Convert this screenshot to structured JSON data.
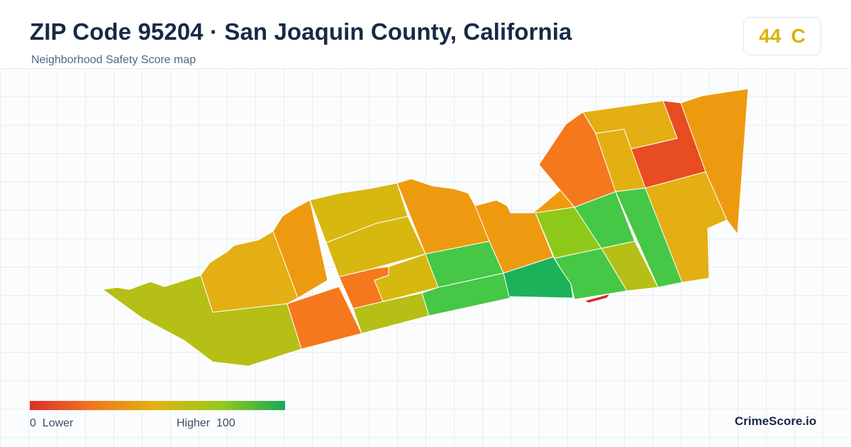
{
  "title": "ZIP Code 95204 · San Joaquin County, California",
  "subtitle": "Neighborhood Safety Score map",
  "score": {
    "value": "44",
    "grade": "C",
    "color": "#d9b400"
  },
  "legend": {
    "low_value": "0",
    "low_label": "Lower",
    "high_label": "Higher",
    "high_value": "100",
    "gradient": [
      "#dc2f2a",
      "#f0781f",
      "#e0b412",
      "#93c91c",
      "#17a957"
    ]
  },
  "brand": "CrimeScore.io",
  "map": {
    "neighborhood_colors": {
      "yellow_green": "#b5bf16",
      "gold": "#e3af12",
      "orange": "#ee9a10",
      "dark_orange": "#f5781c",
      "red_orange": "#e84c21",
      "olive_gold": "#d6b810",
      "lime": "#8ec91a",
      "light_green": "#46c746",
      "green": "#1cb25a",
      "red": "#d92a28"
    }
  }
}
